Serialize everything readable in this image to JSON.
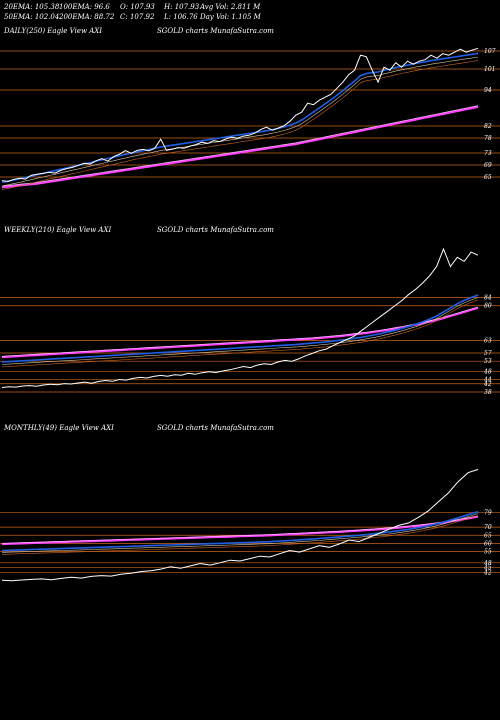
{
  "stats": [
    [
      "20EMA: 105.38",
      "100EMA: 96.6",
      "O: 107.93",
      "H: 107.93",
      "Avg Vol: 2.811 M"
    ],
    [
      "50EMA: 102.04",
      "200EMA: 88.72",
      "C: 107.92",
      "L: 106.76",
      "Day Vol: 1.105 M"
    ]
  ],
  "panels": [
    {
      "label": "DAILY(250) Eagle  View  AXI",
      "brand": "SGOLD charts MunafaSutra.com"
    },
    {
      "label": "WEEKLY(210) Eagle  View  AXI",
      "brand": "SGOLD charts MunafaSutra.com"
    },
    {
      "label": "MONTHLY(49) Eagle  View  AXI",
      "brand": "SGOLD charts MunafaSutra.com"
    }
  ],
  "colors": {
    "background": "#000000",
    "price": "#ffffff",
    "ema_fast": "#1f5fe6",
    "ema_slow": "#ff44ff",
    "level_line": "#c8641e",
    "secondary_ema": "#d9c7a0"
  },
  "chart_data": [
    {
      "type": "line",
      "title": "DAILY(250) Eagle View AXI",
      "ylim": [
        60,
        110
      ],
      "yticks": [
        107,
        101,
        94,
        82,
        78,
        73,
        69,
        65
      ],
      "series": [
        {
          "role": "price",
          "values": [
            63.8,
            63.5,
            64.2,
            64.6,
            64.3,
            65.6,
            65.9,
            66.2,
            66.6,
            66.3,
            67.2,
            67.8,
            68.2,
            68.9,
            69.6,
            69.3,
            70.4,
            71.1,
            70.3,
            71.8,
            72.6,
            73.8,
            72.9,
            73.9,
            74.2,
            73.7,
            74.6,
            77.6,
            73.9,
            74.3,
            74.8,
            74.6,
            75.3,
            75.8,
            76.6,
            76.2,
            77.1,
            76.8,
            77.6,
            78.3,
            77.9,
            78.6,
            78.9,
            79.6,
            80.8,
            81.6,
            80.6,
            81.3,
            82.1,
            83.6,
            85.6,
            86.6,
            89.6,
            89.1,
            90.6,
            91.6,
            92.6,
            94.6,
            96.6,
            99.1,
            100.6,
            105.6,
            105.1,
            100.6,
            96.6,
            101.6,
            100.6,
            103.1,
            101.6,
            103.6,
            102.6,
            103.6,
            104.1,
            105.6,
            104.6,
            106.1,
            105.6,
            106.6,
            107.6,
            106.6,
            107.3,
            107.9
          ]
        },
        {
          "role": "ema_fast",
          "values": [
            63.2,
            63.6,
            64.0,
            64.4,
            64.9,
            65.3,
            65.8,
            66.2,
            66.7,
            67.1,
            67.6,
            68.0,
            68.5,
            68.9,
            69.4,
            69.8,
            70.3,
            70.7,
            71.2,
            71.6,
            72.1,
            72.5,
            73.0,
            73.4,
            73.8,
            74.2,
            74.6,
            75.0,
            75.3,
            75.6,
            75.9,
            76.2,
            76.5,
            76.8,
            77.1,
            77.4,
            77.7,
            78.0,
            78.3,
            78.6,
            78.9,
            79.2,
            79.5,
            79.8,
            80.1,
            80.4,
            80.8,
            81.2,
            81.7,
            82.3,
            83.0,
            84.0,
            85.3,
            86.7,
            88.0,
            89.4,
            90.8,
            92.3,
            93.8,
            95.4,
            97.0,
            98.8,
            99.5,
            99.8,
            100.0,
            100.6,
            101.0,
            101.5,
            101.9,
            102.3,
            102.7,
            103.1,
            103.4,
            103.8,
            104.1,
            104.4,
            104.7,
            105.0,
            105.3,
            105.6,
            105.9,
            106.2
          ]
        },
        {
          "role": "ema_slow",
          "values": [
            61.6,
            61.8,
            62.0,
            62.2,
            62.4,
            62.6,
            62.8,
            63.1,
            63.4,
            63.7,
            64.0,
            64.3,
            64.6,
            64.9,
            65.2,
            65.5,
            65.8,
            66.1,
            66.4,
            66.7,
            67.0,
            67.3,
            67.6,
            67.9,
            68.2,
            68.5,
            68.8,
            69.1,
            69.4,
            69.7,
            70.0,
            70.3,
            70.6,
            70.9,
            71.2,
            71.5,
            71.8,
            72.1,
            72.4,
            72.7,
            73.0,
            73.3,
            73.6,
            73.9,
            74.2,
            74.5,
            74.8,
            75.1,
            75.4,
            75.7,
            76.0,
            76.4,
            76.8,
            77.2,
            77.6,
            78.0,
            78.4,
            78.8,
            79.2,
            79.6,
            80.0,
            80.4,
            80.8,
            81.2,
            81.6,
            82.0,
            82.4,
            82.8,
            83.2,
            83.6,
            84.0,
            84.4,
            84.8,
            85.2,
            85.6,
            86.0,
            86.4,
            86.8,
            87.2,
            87.6,
            88.0,
            88.4
          ]
        }
      ]
    },
    {
      "type": "line",
      "title": "WEEKLY(210) Eagle View AXI",
      "ylim": [
        38,
        112
      ],
      "yticks": [
        84,
        80,
        63,
        57,
        53,
        48,
        44,
        42,
        38
      ],
      "series": [
        {
          "role": "price",
          "values": [
            40.2,
            40.6,
            40.4,
            40.9,
            41.1,
            40.8,
            41.4,
            41.8,
            41.5,
            42.1,
            41.9,
            42.4,
            42.8,
            42.3,
            43.1,
            43.6,
            43.2,
            44.1,
            43.8,
            44.6,
            45.1,
            44.8,
            45.6,
            46.1,
            45.7,
            46.4,
            46.2,
            47.1,
            46.6,
            47.4,
            47.9,
            47.5,
            48.2,
            48.8,
            49.6,
            50.4,
            49.9,
            51.1,
            51.8,
            51.4,
            52.6,
            53.4,
            52.9,
            54.1,
            55.6,
            56.8,
            58.1,
            58.9,
            60.6,
            62.1,
            63.6,
            65.1,
            67.6,
            70.1,
            72.6,
            75.1,
            77.6,
            80.1,
            82.6,
            85.6,
            88.1,
            91.1,
            94.6,
            99.1,
            107.6,
            99.1,
            103.6,
            101.6,
            106.1,
            104.6
          ]
        },
        {
          "role": "ema_fast",
          "values": [
            52.6,
            52.8,
            53.0,
            53.2,
            53.4,
            53.6,
            53.8,
            54.0,
            54.2,
            54.4,
            54.6,
            54.8,
            55.0,
            55.2,
            55.4,
            55.6,
            55.8,
            56.0,
            56.2,
            56.4,
            56.6,
            56.8,
            57.0,
            57.2,
            57.4,
            57.6,
            57.8,
            58.0,
            58.2,
            58.4,
            58.6,
            58.8,
            59.0,
            59.2,
            59.4,
            59.6,
            59.8,
            60.0,
            60.2,
            60.4,
            60.6,
            60.8,
            61.0,
            61.2,
            61.5,
            61.8,
            62.1,
            62.4,
            62.8,
            63.2,
            63.6,
            64.1,
            64.6,
            65.2,
            65.8,
            66.5,
            67.3,
            68.1,
            69.0,
            70.0,
            71.0,
            72.2,
            73.5,
            75.0,
            77.0,
            79.0,
            81.0,
            82.6,
            84.0,
            85.2
          ]
        },
        {
          "role": "ema_slow",
          "values": [
            55.0,
            55.2,
            55.4,
            55.6,
            55.8,
            56.0,
            56.2,
            56.4,
            56.6,
            56.8,
            57.0,
            57.2,
            57.4,
            57.6,
            57.8,
            58.0,
            58.2,
            58.4,
            58.6,
            58.8,
            59.0,
            59.2,
            59.4,
            59.6,
            59.8,
            60.0,
            60.2,
            60.4,
            60.6,
            60.8,
            61.0,
            61.2,
            61.4,
            61.6,
            61.8,
            62.0,
            62.2,
            62.4,
            62.6,
            62.8,
            63.0,
            63.2,
            63.4,
            63.6,
            63.8,
            64.0,
            64.3,
            64.6,
            64.9,
            65.2,
            65.6,
            66.0,
            66.4,
            66.8,
            67.3,
            67.8,
            68.3,
            68.9,
            69.5,
            70.1,
            70.8,
            71.5,
            72.3,
            73.1,
            74.0,
            75.0,
            76.0,
            77.0,
            78.0,
            79.0
          ]
        }
      ]
    },
    {
      "type": "line",
      "title": "MONTHLY(49) Eagle View AXI",
      "ylim": [
        30,
        125
      ],
      "yticks": [
        79,
        70,
        65,
        60,
        55,
        48,
        45,
        42
      ],
      "series": [
        {
          "role": "price",
          "values": [
            37.2,
            37.0,
            37.4,
            37.8,
            38.1,
            37.6,
            38.4,
            39.1,
            38.6,
            39.6,
            40.1,
            39.8,
            40.9,
            41.6,
            42.6,
            43.1,
            44.1,
            45.6,
            44.6,
            46.1,
            47.6,
            46.6,
            48.1,
            49.6,
            49.1,
            50.6,
            52.1,
            51.6,
            53.6,
            55.6,
            54.6,
            56.6,
            58.6,
            57.6,
            59.6,
            62.1,
            61.1,
            63.6,
            66.1,
            68.6,
            71.1,
            72.6,
            76.1,
            80.1,
            85.6,
            91.1,
            98.1,
            103.6,
            105.6
          ]
        },
        {
          "role": "ema_fast",
          "values": [
            55.6,
            55.8,
            56.0,
            56.2,
            56.4,
            56.6,
            56.8,
            57.0,
            57.2,
            57.4,
            57.6,
            57.8,
            58.0,
            58.2,
            58.4,
            58.6,
            58.8,
            59.0,
            59.2,
            59.4,
            59.6,
            59.8,
            60.0,
            60.2,
            60.4,
            60.6,
            60.8,
            61.0,
            61.4,
            61.8,
            62.2,
            62.6,
            63.0,
            63.5,
            64.0,
            64.5,
            65.0,
            65.6,
            66.3,
            67.0,
            67.8,
            68.7,
            69.7,
            70.9,
            72.3,
            74.0,
            75.8,
            77.7,
            79.6
          ]
        },
        {
          "role": "ema_slow",
          "values": [
            59.6,
            59.8,
            60.0,
            60.2,
            60.4,
            60.6,
            60.8,
            61.0,
            61.2,
            61.4,
            61.6,
            61.8,
            62.0,
            62.2,
            62.4,
            62.6,
            62.8,
            63.0,
            63.2,
            63.4,
            63.6,
            63.8,
            64.0,
            64.2,
            64.4,
            64.6,
            64.8,
            65.0,
            65.3,
            65.6,
            65.9,
            66.2,
            66.5,
            66.8,
            67.1,
            67.5,
            67.9,
            68.3,
            68.7,
            69.2,
            69.7,
            70.3,
            70.9,
            71.6,
            72.4,
            73.3,
            74.3,
            75.4,
            76.6
          ]
        }
      ]
    }
  ]
}
